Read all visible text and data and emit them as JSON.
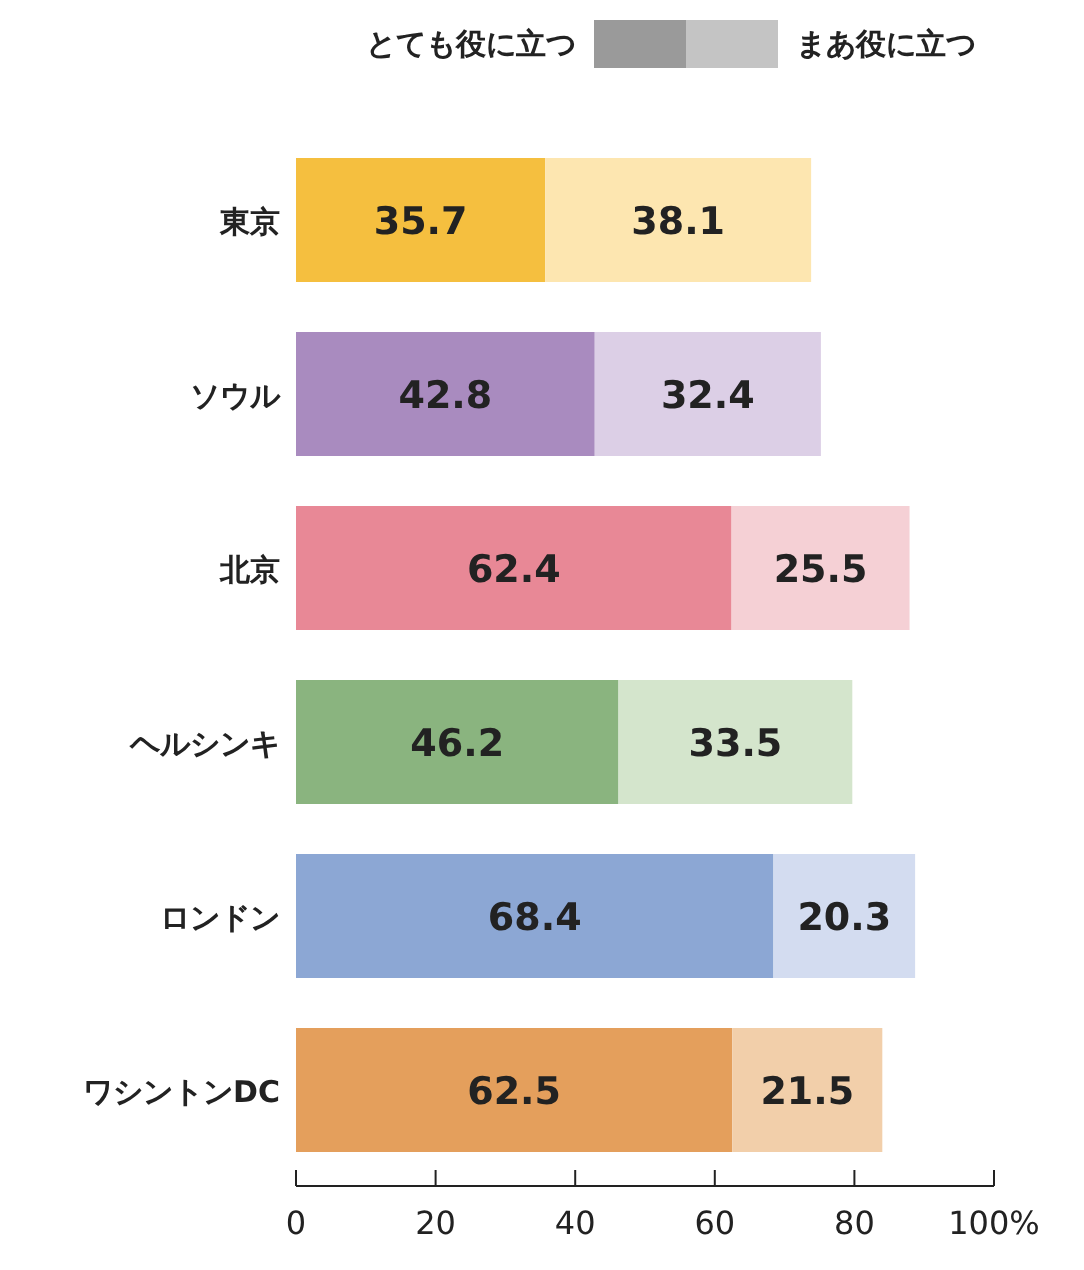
{
  "chart_data": {
    "type": "bar",
    "orientation": "horizontal",
    "stacked": true,
    "data_labels": true,
    "grid": false,
    "categories": [
      "東京",
      "ソウル",
      "北京",
      "ヘルシンキ",
      "ロンドン",
      "ワシントンDC"
    ],
    "annotations": [
      "とても役に立つ",
      "まあ役に立つ"
    ],
    "xlim": [
      0,
      100
    ],
    "xticks": [
      0,
      20,
      40,
      60,
      80,
      {
        "value": 100,
        "label": "100%"
      }
    ],
    "series": [
      {
        "color": "#9a9a9a",
        "colors": [
          "#f5bf3f",
          "#a98bbf",
          "#e88896",
          "#8ab47f",
          "#8ca7d4",
          "#e49f5c"
        ],
        "values": [
          35.7,
          42.8,
          62.4,
          46.2,
          68.4,
          62.5
        ]
      },
      {
        "color": "#c4c4c4",
        "colors": [
          "#fde6b0",
          "#dccfe6",
          "#f5d0d5",
          "#d4e5cc",
          "#d3dcf0",
          "#f2cfaa"
        ],
        "values": [
          38.1,
          32.4,
          25.5,
          33.5,
          20.3,
          21.5
        ]
      }
    ]
  }
}
